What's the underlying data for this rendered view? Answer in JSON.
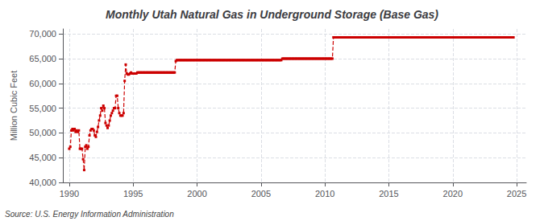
{
  "chart_data": {
    "type": "line",
    "title": "Monthly Utah Natural Gas in Underground Storage (Base Gas)",
    "ylabel": "Million Cubic Feet",
    "annotations": [
      "Source: U.S. Energy Information Administration"
    ],
    "color": "#cc0000",
    "marker": "square",
    "line_style": "dashed",
    "grid": true,
    "xlim": [
      1989.5,
      2025.75
    ],
    "ylim": [
      40000,
      71000
    ],
    "xticks": [
      1990,
      1995,
      2000,
      2005,
      2010,
      2015,
      2020,
      2025
    ],
    "yticks": [
      {
        "value": 40000,
        "label": "40,000"
      },
      {
        "value": 45000,
        "label": "45,000"
      },
      {
        "value": 50000,
        "label": "50,000"
      },
      {
        "value": 55000,
        "label": "55,000"
      },
      {
        "value": 60000,
        "label": "60,000"
      },
      {
        "value": 65000,
        "label": "65,000"
      },
      {
        "value": 70000,
        "label": "70,000"
      }
    ],
    "x": [
      1990.0,
      1990.083,
      1990.167,
      1990.25,
      1990.333,
      1990.417,
      1990.5,
      1990.583,
      1990.667,
      1990.75,
      1990.833,
      1990.917,
      1991.0,
      1991.083,
      1991.167,
      1991.25,
      1991.333,
      1991.417,
      1991.5,
      1991.583,
      1991.667,
      1991.75,
      1991.833,
      1991.917,
      1992.0,
      1992.083,
      1992.167,
      1992.25,
      1992.333,
      1992.417,
      1992.5,
      1992.583,
      1992.667,
      1992.75,
      1992.833,
      1992.917,
      1993.0,
      1993.083,
      1993.167,
      1993.25,
      1993.333,
      1993.417,
      1993.5,
      1993.583,
      1993.667,
      1993.75,
      1993.833,
      1993.917,
      1994.0,
      1994.083,
      1994.167,
      1994.25,
      1994.333,
      1994.417,
      1994.5,
      1994.583,
      1994.667,
      1994.75,
      1994.833,
      1994.917,
      1995.0,
      1995.083,
      1995.167,
      1995.25,
      1995.333,
      1995.417,
      1995.5,
      1995.583,
      1995.667,
      1995.75,
      1995.833,
      1995.917,
      1996.0,
      1996.083,
      1996.167,
      1996.25,
      1996.333,
      1996.417,
      1996.5,
      1996.583,
      1996.667,
      1996.75,
      1996.833,
      1996.917,
      1997.0,
      1997.083,
      1997.167,
      1997.25,
      1997.333,
      1997.417,
      1997.5,
      1997.583,
      1997.667,
      1997.75,
      1997.833,
      1997.917,
      1998.0,
      1998.083,
      1998.167,
      1998.25,
      1998.333,
      1998.417,
      1998.5,
      1998.583,
      1998.667,
      1998.75,
      1998.833,
      1998.917,
      1999.0,
      1999.083,
      1999.167,
      1999.25,
      1999.333,
      1999.417,
      1999.5,
      1999.583,
      1999.667,
      1999.75,
      1999.833,
      1999.917,
      2000.0,
      2000.083,
      2000.167,
      2000.25,
      2000.333,
      2000.417,
      2000.5,
      2000.583,
      2000.667,
      2000.75,
      2000.833,
      2000.917,
      2001.0,
      2001.083,
      2001.167,
      2001.25,
      2001.333,
      2001.417,
      2001.5,
      2001.583,
      2001.667,
      2001.75,
      2001.833,
      2001.917,
      2002.0,
      2002.083,
      2002.167,
      2002.25,
      2002.333,
      2002.417,
      2002.5,
      2002.583,
      2002.667,
      2002.75,
      2002.833,
      2002.917,
      2003.0,
      2003.083,
      2003.167,
      2003.25,
      2003.333,
      2003.417,
      2003.5,
      2003.583,
      2003.667,
      2003.75,
      2003.833,
      2003.917,
      2004.0,
      2004.083,
      2004.167,
      2004.25,
      2004.333,
      2004.417,
      2004.5,
      2004.583,
      2004.667,
      2004.75,
      2004.833,
      2004.917,
      2005.0,
      2005.083,
      2005.167,
      2005.25,
      2005.333,
      2005.417,
      2005.5,
      2005.583,
      2005.667,
      2005.75,
      2005.833,
      2005.917,
      2006.0,
      2006.083,
      2006.167,
      2006.25,
      2006.333,
      2006.417,
      2006.5,
      2006.583,
      2006.667,
      2006.75,
      2006.833,
      2006.917,
      2007.0,
      2007.083,
      2007.167,
      2007.25,
      2007.333,
      2007.417,
      2007.5,
      2007.583,
      2007.667,
      2007.75,
      2007.833,
      2007.917,
      2008.0,
      2008.083,
      2008.167,
      2008.25,
      2008.333,
      2008.417,
      2008.5,
      2008.583,
      2008.667,
      2008.75,
      2008.833,
      2008.917,
      2009.0,
      2009.083,
      2009.167,
      2009.25,
      2009.333,
      2009.417,
      2009.5,
      2009.583,
      2009.667,
      2009.75,
      2009.833,
      2009.917,
      2010.0,
      2010.083,
      2010.167,
      2010.25,
      2010.333,
      2010.417,
      2010.5,
      2010.583,
      2010.667,
      2010.75,
      2010.833,
      2010.917,
      2011.0,
      2011.083,
      2011.167,
      2011.25,
      2011.333,
      2011.417,
      2011.5,
      2011.583,
      2011.667,
      2011.75,
      2011.833,
      2011.917,
      2012.0,
      2012.083,
      2012.167,
      2012.25,
      2012.333,
      2012.417,
      2012.5,
      2012.583,
      2012.667,
      2012.75,
      2012.833,
      2012.917,
      2013.0,
      2013.083,
      2013.167,
      2013.25,
      2013.333,
      2013.417,
      2013.5,
      2013.583,
      2013.667,
      2013.75,
      2013.833,
      2013.917,
      2014.0,
      2014.083,
      2014.167,
      2014.25,
      2014.333,
      2014.417,
      2014.5,
      2014.583,
      2014.667,
      2014.75,
      2014.833,
      2014.917,
      2015.0,
      2015.083,
      2015.167,
      2015.25,
      2015.333,
      2015.417,
      2015.5,
      2015.583,
      2015.667,
      2015.75,
      2015.833,
      2015.917,
      2016.0,
      2016.083,
      2016.167,
      2016.25,
      2016.333,
      2016.417,
      2016.5,
      2016.583,
      2016.667,
      2016.75,
      2016.833,
      2016.917,
      2017.0,
      2017.083,
      2017.167,
      2017.25,
      2017.333,
      2017.417,
      2017.5,
      2017.583,
      2017.667,
      2017.75,
      2017.833,
      2017.917,
      2018.0,
      2018.083,
      2018.167,
      2018.25,
      2018.333,
      2018.417,
      2018.5,
      2018.583,
      2018.667,
      2018.75,
      2018.833,
      2018.917,
      2019.0,
      2019.083,
      2019.167,
      2019.25,
      2019.333,
      2019.417,
      2019.5,
      2019.583,
      2019.667,
      2019.75,
      2019.833,
      2019.917,
      2020.0,
      2020.083,
      2020.167,
      2020.25,
      2020.333,
      2020.417,
      2020.5,
      2020.583,
      2020.667,
      2020.75,
      2020.833,
      2020.917,
      2021.0,
      2021.083,
      2021.167,
      2021.25,
      2021.333,
      2021.417,
      2021.5,
      2021.583,
      2021.667,
      2021.75,
      2021.833,
      2021.917,
      2022.0,
      2022.083,
      2022.167,
      2022.25,
      2022.333,
      2022.417,
      2022.5,
      2022.583,
      2022.667,
      2022.75,
      2022.833,
      2022.917,
      2023.0,
      2023.083,
      2023.167,
      2023.25,
      2023.333,
      2023.417,
      2023.5,
      2023.583,
      2023.667,
      2023.75,
      2023.833,
      2023.917,
      2024.0,
      2024.083,
      2024.167,
      2024.25,
      2024.333,
      2024.417,
      2024.5,
      2024.583,
      2024.667,
      2024.75
    ],
    "values": [
      46800,
      47200,
      50500,
      50800,
      50500,
      50800,
      50200,
      50500,
      50200,
      50500,
      46800,
      46800,
      46800,
      44700,
      42500,
      47200,
      47500,
      46800,
      47200,
      49500,
      50500,
      50800,
      50800,
      50500,
      49500,
      49200,
      50200,
      51200,
      52500,
      53500,
      55000,
      54500,
      55500,
      55000,
      52000,
      51500,
      51000,
      51500,
      52500,
      53500,
      54000,
      54500,
      55000,
      55000,
      57500,
      57500,
      55000,
      54000,
      53500,
      53500,
      53500,
      54000,
      60500,
      63800,
      62000,
      61800,
      61800,
      62000,
      62200,
      62000,
      62000,
      62000,
      62000,
      62000,
      62200,
      62200,
      62200,
      62200,
      62200,
      62200,
      62200,
      62200,
      62200,
      62200,
      62200,
      62200,
      62200,
      62200,
      62200,
      62200,
      62200,
      62200,
      62200,
      62200,
      62200,
      62200,
      62200,
      62200,
      62200,
      62200,
      62200,
      62200,
      62200,
      62200,
      62200,
      62200,
      62200,
      62200,
      62200,
      62200,
      64500,
      64700,
      64700,
      64700,
      64700,
      64700,
      64700,
      64700,
      64700,
      64700,
      64700,
      64700,
      64700,
      64700,
      64700,
      64700,
      64700,
      64700,
      64700,
      64700,
      64700,
      64700,
      64700,
      64700,
      64700,
      64700,
      64700,
      64700,
      64700,
      64700,
      64700,
      64700,
      64700,
      64700,
      64700,
      64700,
      64700,
      64700,
      64700,
      64700,
      64700,
      64700,
      64700,
      64700,
      64700,
      64700,
      64700,
      64700,
      64700,
      64700,
      64700,
      64700,
      64700,
      64700,
      64700,
      64700,
      64700,
      64700,
      64700,
      64700,
      64700,
      64700,
      64700,
      64700,
      64700,
      64700,
      64700,
      64700,
      64700,
      64700,
      64700,
      64700,
      64700,
      64700,
      64700,
      64700,
      64700,
      64700,
      64700,
      64700,
      64700,
      64700,
      64700,
      64700,
      64700,
      64700,
      64700,
      64700,
      64700,
      64700,
      64700,
      64700,
      64700,
      64700,
      64700,
      64700,
      64700,
      64700,
      64700,
      64700,
      65000,
      65000,
      65000,
      65000,
      65000,
      65000,
      65000,
      65000,
      65000,
      65000,
      65000,
      65000,
      65000,
      65000,
      65000,
      65000,
      65000,
      65000,
      65000,
      65000,
      65000,
      65000,
      65000,
      65000,
      65000,
      65000,
      65000,
      65000,
      65000,
      65000,
      65000,
      65000,
      65000,
      65000,
      65000,
      65000,
      65000,
      65000,
      65000,
      65000,
      65000,
      65000,
      65000,
      65000,
      65000,
      65000,
      65000,
      65000,
      69300,
      69300,
      69300,
      69300,
      69300,
      69300,
      69300,
      69300,
      69300,
      69300,
      69300,
      69300,
      69300,
      69300,
      69300,
      69300,
      69300,
      69300,
      69300,
      69300,
      69300,
      69300,
      69300,
      69300,
      69300,
      69300,
      69300,
      69300,
      69300,
      69300,
      69300,
      69300,
      69300,
      69300,
      69300,
      69300,
      69300,
      69300,
      69300,
      69300,
      69300,
      69300,
      69300,
      69300,
      69300,
      69300,
      69300,
      69300,
      69300,
      69300,
      69300,
      69300,
      69300,
      69300,
      69300,
      69300,
      69300,
      69300,
      69300,
      69300,
      69300,
      69300,
      69300,
      69300,
      69300,
      69300,
      69300,
      69300,
      69300,
      69300,
      69300,
      69300,
      69300,
      69300,
      69300,
      69300,
      69300,
      69300,
      69300,
      69300,
      69300,
      69300,
      69300,
      69300,
      69300,
      69300,
      69300,
      69300,
      69300,
      69300,
      69300,
      69300,
      69300,
      69300,
      69300,
      69300,
      69300,
      69300,
      69300,
      69300,
      69300,
      69300,
      69300,
      69300,
      69300,
      69300,
      69300,
      69300,
      69300,
      69300,
      69300,
      69300,
      69300,
      69300,
      69300,
      69300,
      69300,
      69300,
      69300,
      69300,
      69300,
      69300,
      69300,
      69300,
      69300,
      69300,
      69300,
      69300,
      69300,
      69300,
      69300,
      69300,
      69300,
      69300,
      69300,
      69300,
      69300,
      69300,
      69300,
      69300,
      69300,
      69300,
      69300,
      69300,
      69300,
      69300,
      69300,
      69300,
      69300,
      69300,
      69300,
      69300,
      69300,
      69300,
      69300,
      69300,
      69300,
      69300,
      69300,
      69300,
      69300,
      69300,
      69300,
      69300,
      69300,
      69300,
      69300,
      69300,
      69300,
      69300
    ]
  }
}
